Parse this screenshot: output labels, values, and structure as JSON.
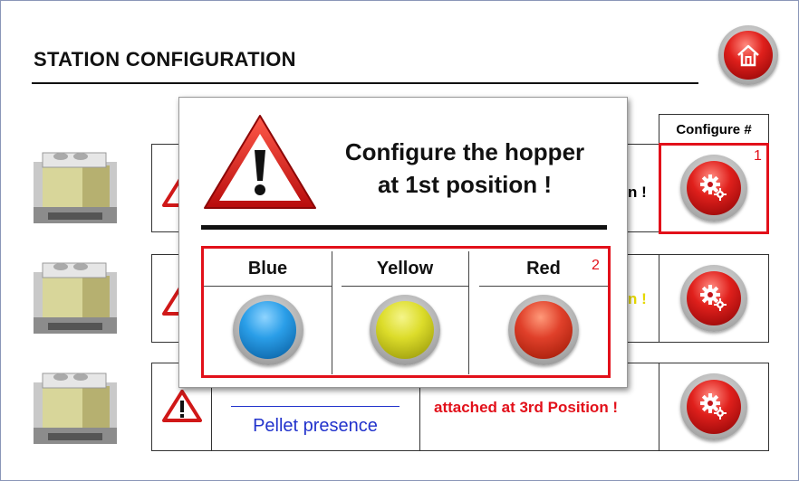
{
  "page": {
    "title": "STATION CONFIGURATION"
  },
  "header": {
    "home_icon": "home-icon"
  },
  "table": {
    "configure_header": "Configure #",
    "rows": [
      {
        "partial_text": "n !",
        "partial_color": "#000000"
      },
      {
        "partial_text": "n !",
        "partial_color": "#e6d800"
      },
      {
        "partial_text": "attached at 3rd Position !",
        "partial_color": "#e2101a",
        "link_text": "Pellet presence"
      }
    ],
    "gear_icon": "gear-icon"
  },
  "annotations": {
    "first": "1",
    "second": "2"
  },
  "modal": {
    "title_line1": "Configure the hopper",
    "title_line2": "at 1st position !",
    "warning_icon": "warning-icon",
    "choices": [
      {
        "label": "Blue",
        "color": "#2a9ee8"
      },
      {
        "label": "Yellow",
        "color": "#dcdc2a"
      },
      {
        "label": "Red",
        "color": "#e0402a"
      }
    ]
  },
  "colors": {
    "accent_red": "#e2101a",
    "link_blue": "#2233cc"
  }
}
